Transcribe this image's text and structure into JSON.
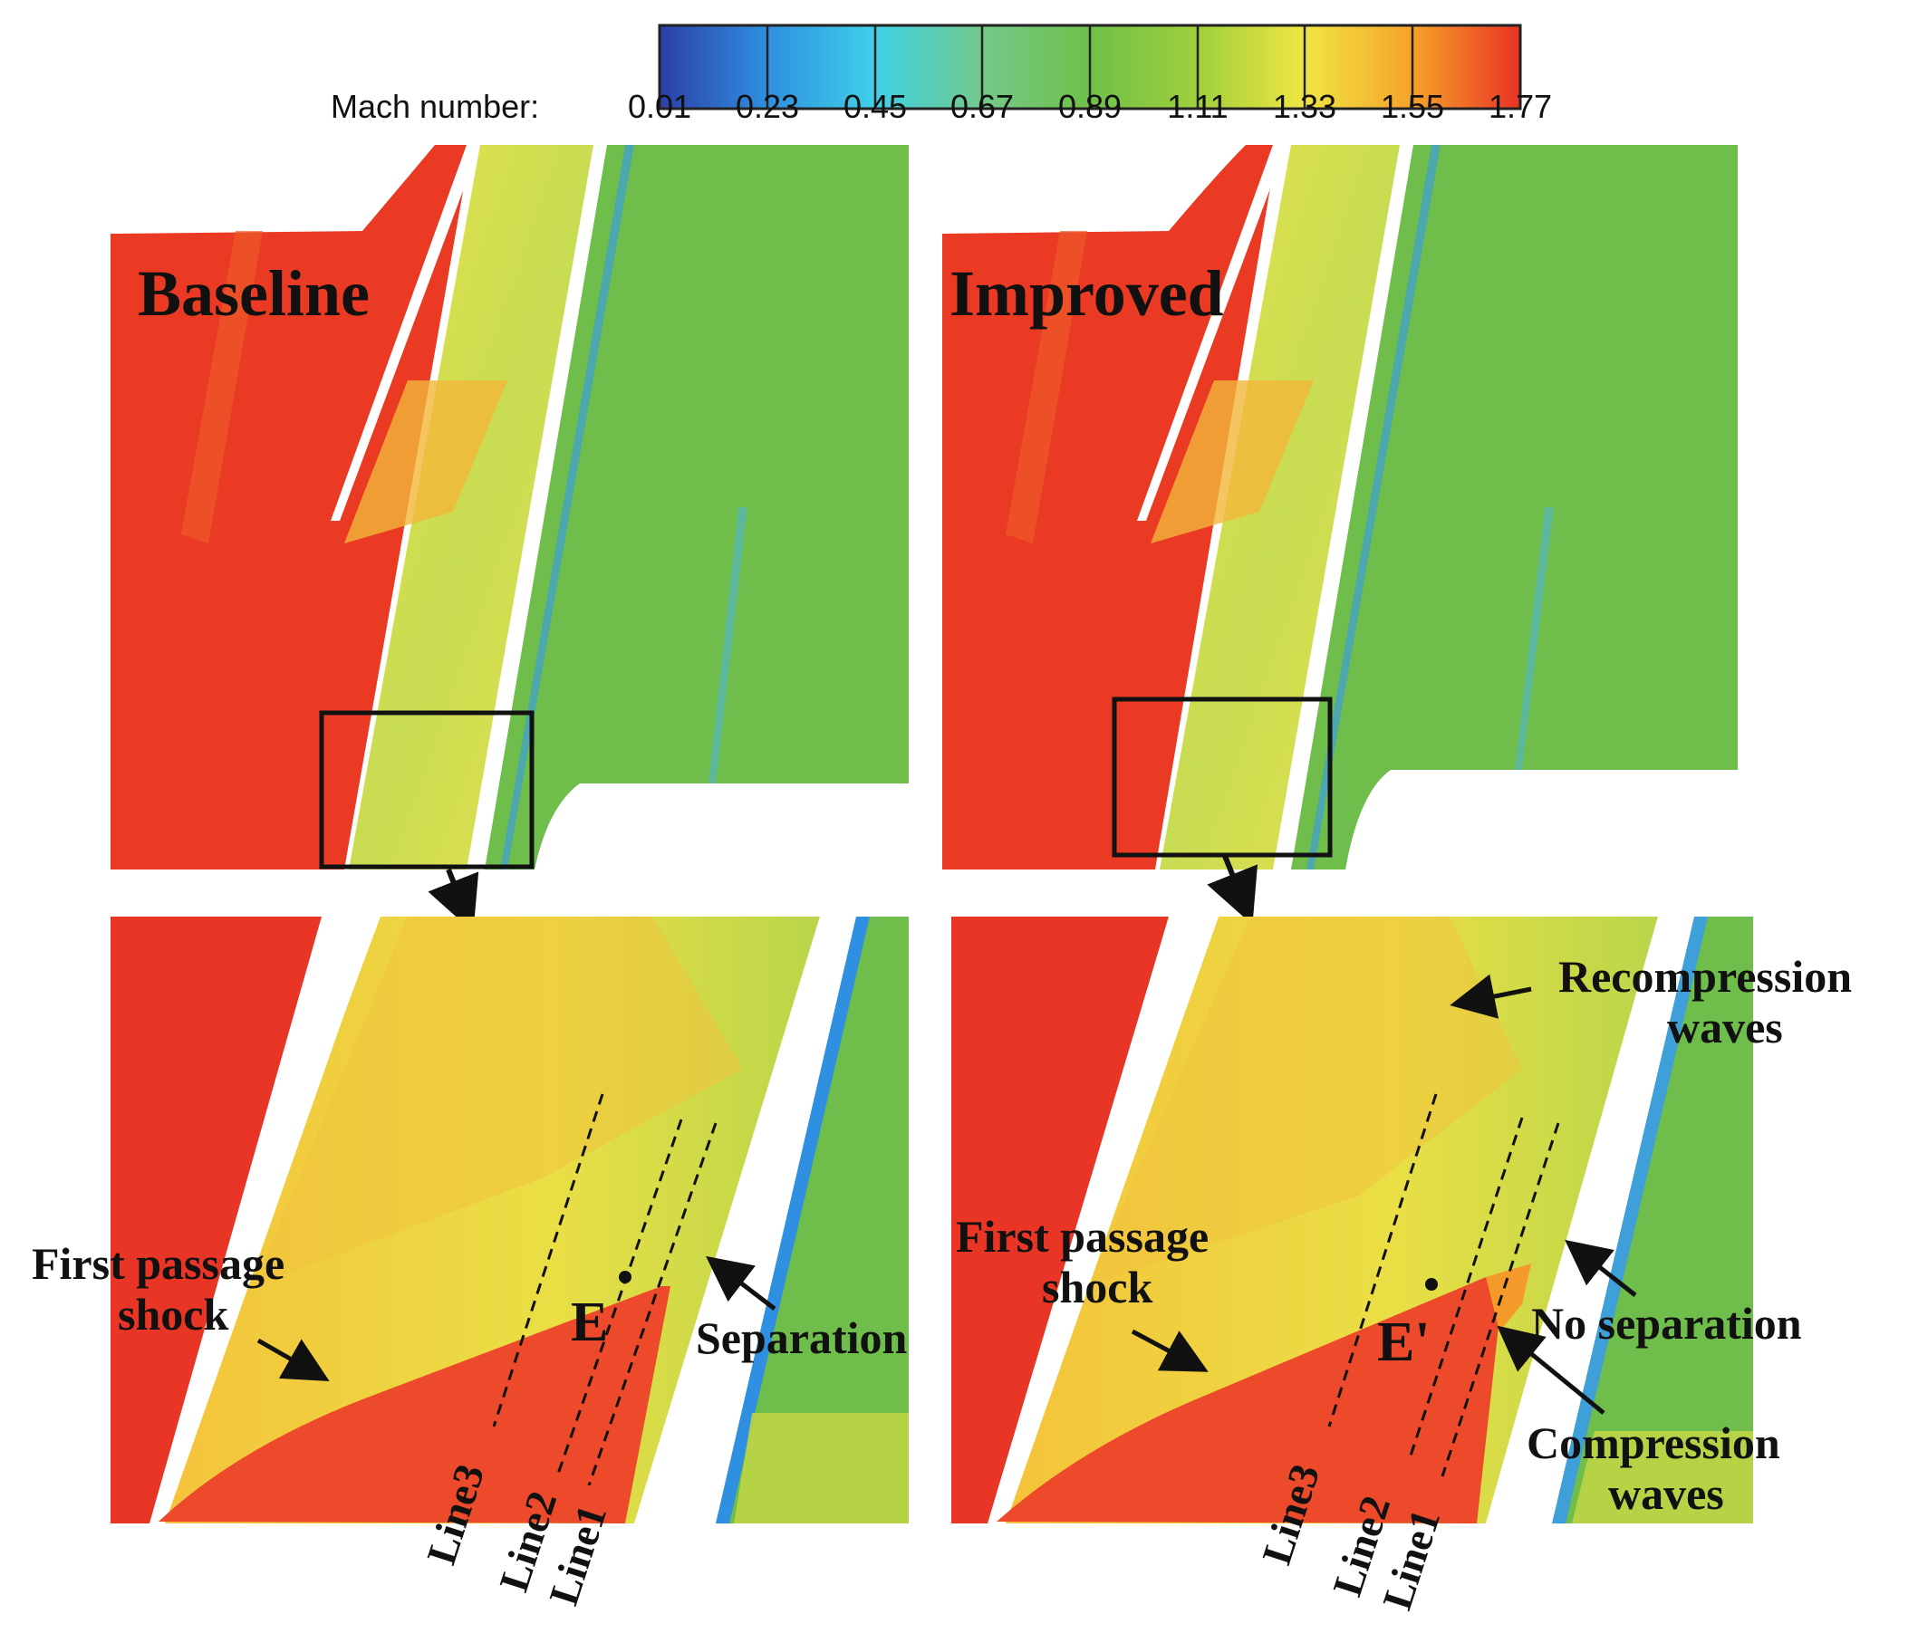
{
  "colorbar": {
    "label": "Mach number:",
    "ticks": [
      "0.01",
      "0.23",
      "0.45",
      "0.67",
      "0.89",
      "1.11",
      "1.33",
      "1.55",
      "1.77"
    ],
    "colors": [
      "#2b3fa8",
      "#2f8fe0",
      "#3fd0e8",
      "#74c98a",
      "#6fc04a",
      "#9fd03a",
      "#f0e642",
      "#f6a22a",
      "#ea3326"
    ]
  },
  "panels": {
    "baseline": {
      "title": "Baseline",
      "first_shock": [
        "First passage",
        "shock"
      ],
      "point": "E",
      "flow_note": "Separation",
      "lines": [
        "Line3",
        "Line2",
        "Line1"
      ]
    },
    "improved": {
      "title": "Improved",
      "first_shock": [
        "First passage",
        "shock"
      ],
      "point": "E'",
      "recompression": [
        "Recompression",
        "waves"
      ],
      "no_separation": "No separation",
      "compression": [
        "Compression",
        "waves"
      ],
      "lines": [
        "Line3",
        "Line2",
        "Line1"
      ]
    }
  }
}
